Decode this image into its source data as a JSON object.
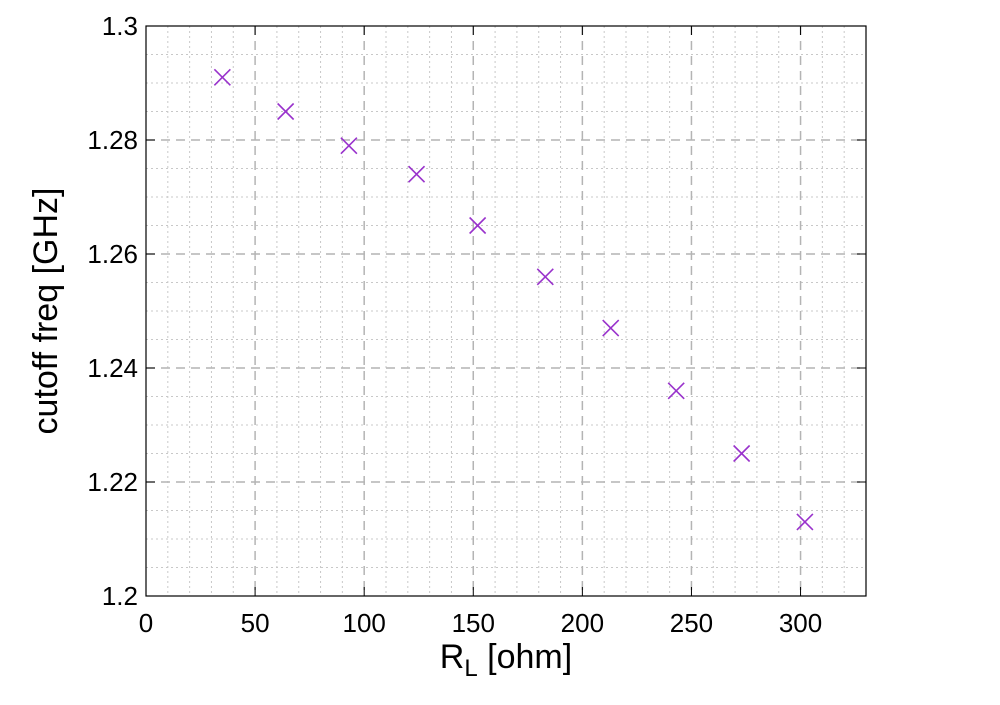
{
  "chart_data": {
    "type": "scatter",
    "title": "",
    "xlabel_main": "R",
    "xlabel_sub": "L",
    "xlabel_rest": " [ohm]",
    "ylabel": "cutoff freq [GHz]",
    "xlim": [
      0,
      330
    ],
    "ylim": [
      1.2,
      1.3
    ],
    "xticks": [
      "0",
      "50",
      "100",
      "150",
      "200",
      "250",
      "300"
    ],
    "yticks": [
      "1.2",
      "1.22",
      "1.24",
      "1.26",
      "1.28",
      "1.3"
    ],
    "grid": true,
    "marker": "x",
    "marker_color": "#9932CC",
    "series": [
      {
        "x": [
          35,
          64,
          93,
          124,
          152,
          183,
          213,
          243,
          273,
          302
        ],
        "y": [
          1.291,
          1.285,
          1.279,
          1.274,
          1.265,
          1.256,
          1.247,
          1.236,
          1.225,
          1.213
        ]
      }
    ]
  }
}
